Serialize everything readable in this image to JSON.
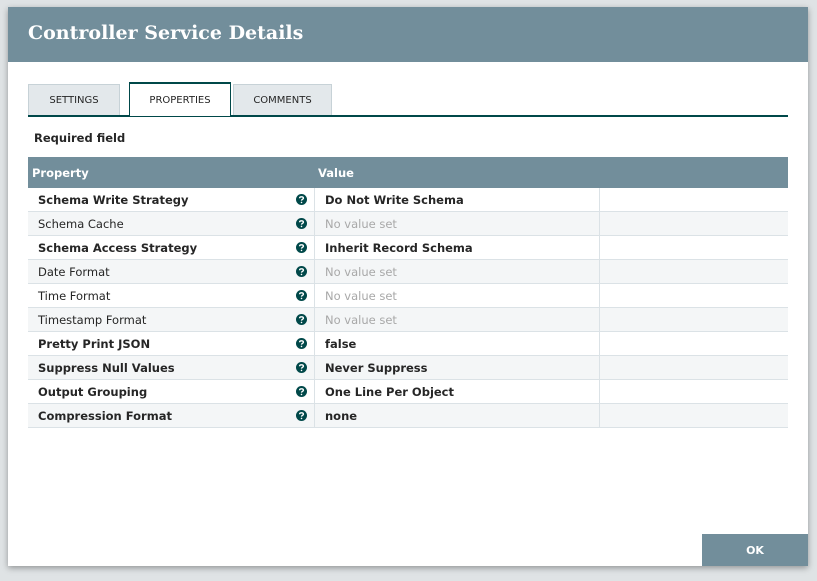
{
  "dialog": {
    "title": "Controller Service Details",
    "tabs": [
      "SETTINGS",
      "PROPERTIES",
      "COMMENTS"
    ],
    "active_tab": 1,
    "required_note": "Required field",
    "table": {
      "columns": [
        "Property",
        "Value"
      ],
      "rows": [
        {
          "property": "Schema Write Strategy",
          "value": "Do Not Write Schema",
          "required": true,
          "empty": false
        },
        {
          "property": "Schema Cache",
          "value": "No value set",
          "required": false,
          "empty": true
        },
        {
          "property": "Schema Access Strategy",
          "value": "Inherit Record Schema",
          "required": true,
          "empty": false
        },
        {
          "property": "Date Format",
          "value": "No value set",
          "required": false,
          "empty": true
        },
        {
          "property": "Time Format",
          "value": "No value set",
          "required": false,
          "empty": true
        },
        {
          "property": "Timestamp Format",
          "value": "No value set",
          "required": false,
          "empty": true
        },
        {
          "property": "Pretty Print JSON",
          "value": "false",
          "required": true,
          "empty": false
        },
        {
          "property": "Suppress Null Values",
          "value": "Never Suppress",
          "required": true,
          "empty": false
        },
        {
          "property": "Output Grouping",
          "value": "One Line Per Object",
          "required": true,
          "empty": false
        },
        {
          "property": "Compression Format",
          "value": "none",
          "required": true,
          "empty": false
        }
      ]
    },
    "ok_button": "OK"
  }
}
